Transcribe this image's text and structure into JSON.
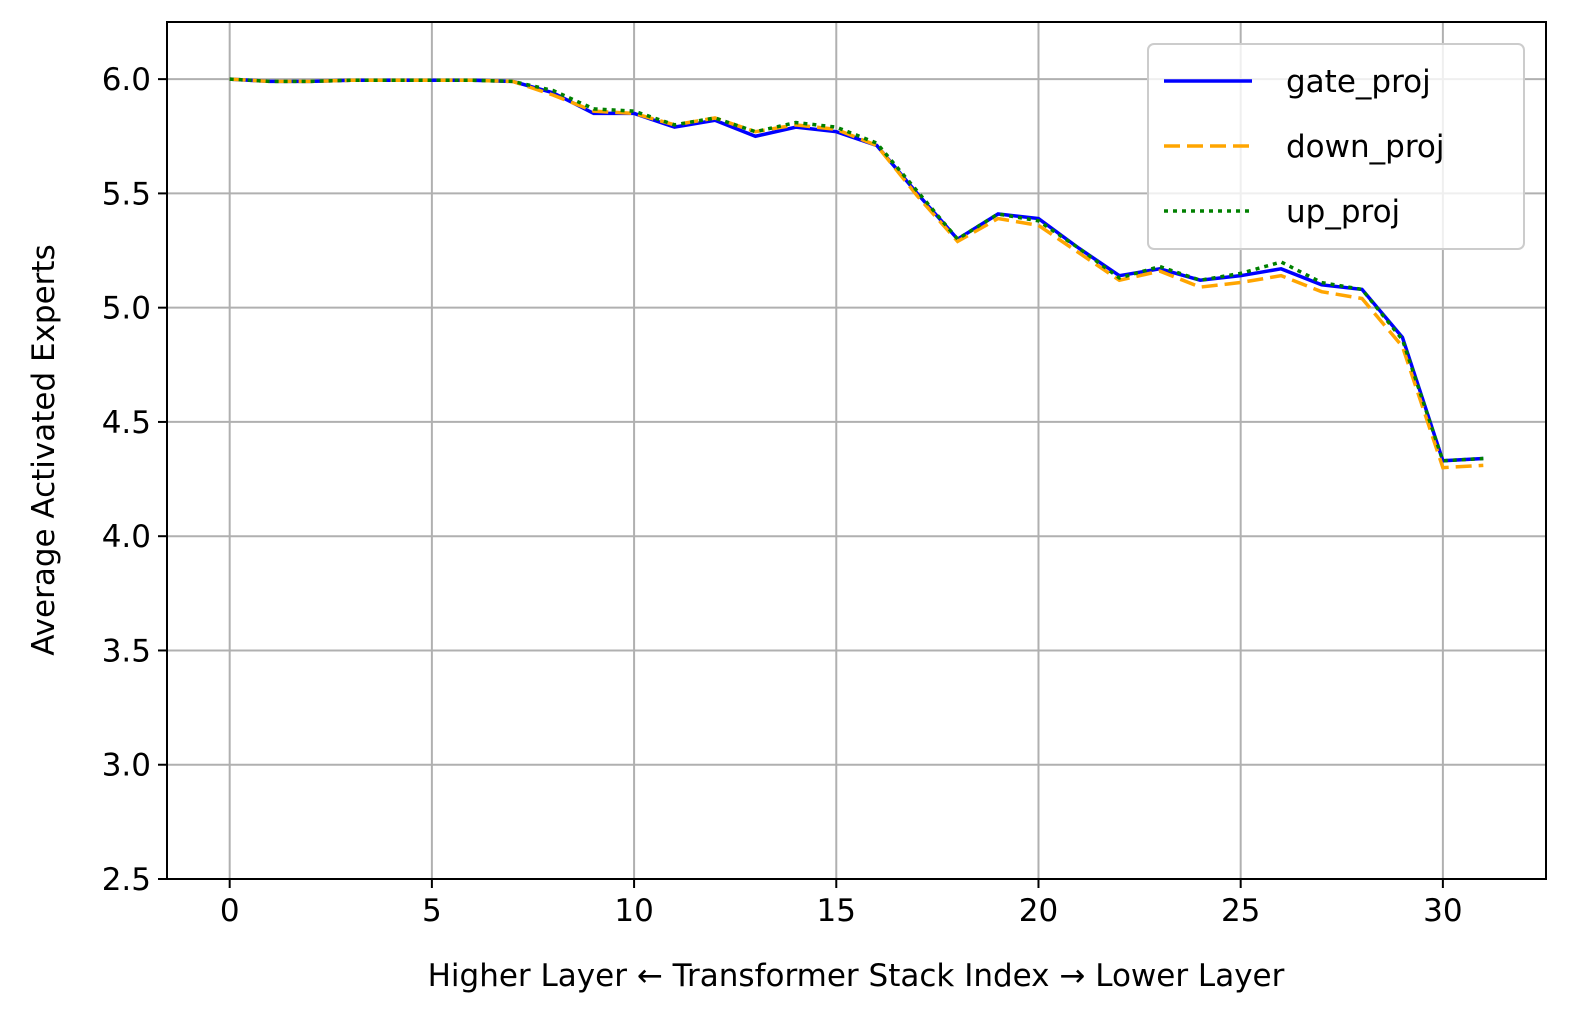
{
  "chart_data": {
    "type": "line",
    "xlabel": "Higher Layer ← Transformer Stack Index → Lower Layer",
    "ylabel": "Average Activated Experts",
    "x": [
      0,
      1,
      2,
      3,
      4,
      5,
      6,
      7,
      8,
      9,
      10,
      11,
      12,
      13,
      14,
      15,
      16,
      17,
      18,
      19,
      20,
      21,
      22,
      23,
      24,
      25,
      26,
      27,
      28,
      29,
      30,
      31
    ],
    "series": [
      {
        "name": "gate_proj",
        "color": "#0000ff",
        "style": "solid",
        "values": [
          6.0,
          5.99,
          5.99,
          5.995,
          5.995,
          5.995,
          5.995,
          5.99,
          5.94,
          5.85,
          5.85,
          5.79,
          5.82,
          5.75,
          5.79,
          5.77,
          5.71,
          5.5,
          5.3,
          5.41,
          5.39,
          5.26,
          5.14,
          5.17,
          5.12,
          5.14,
          5.17,
          5.1,
          5.08,
          4.87,
          4.33,
          4.34
        ]
      },
      {
        "name": "down_proj",
        "color": "#ffa500",
        "style": "dashed",
        "values": [
          6.0,
          5.99,
          5.99,
          5.995,
          5.995,
          5.995,
          5.995,
          5.99,
          5.93,
          5.86,
          5.85,
          5.8,
          5.83,
          5.77,
          5.8,
          5.78,
          5.71,
          5.49,
          5.29,
          5.39,
          5.36,
          5.24,
          5.12,
          5.16,
          5.09,
          5.11,
          5.14,
          5.07,
          5.04,
          4.83,
          4.3,
          4.31
        ]
      },
      {
        "name": "up_proj",
        "color": "#008000",
        "style": "dotted",
        "values": [
          6.0,
          5.99,
          5.99,
          5.995,
          5.995,
          5.995,
          5.995,
          5.99,
          5.95,
          5.87,
          5.86,
          5.8,
          5.83,
          5.77,
          5.81,
          5.79,
          5.72,
          5.51,
          5.3,
          5.41,
          5.38,
          5.26,
          5.13,
          5.18,
          5.12,
          5.15,
          5.2,
          5.11,
          5.08,
          4.86,
          4.33,
          4.34
        ]
      }
    ],
    "xlim": [
      -1.55,
      32.55
    ],
    "xticks": [
      0,
      5,
      10,
      15,
      20,
      25,
      30
    ],
    "ylim": [
      2.5,
      6.25
    ],
    "yticks": [
      2.5,
      {
        "value": 3,
        "label": "3.0"
      },
      3.5,
      {
        "value": 4,
        "label": "4.0"
      },
      4.5,
      {
        "value": 5,
        "label": "5.0"
      },
      5.5,
      {
        "value": 6,
        "label": "6.0"
      }
    ],
    "grid": true,
    "legend": "upper right"
  }
}
